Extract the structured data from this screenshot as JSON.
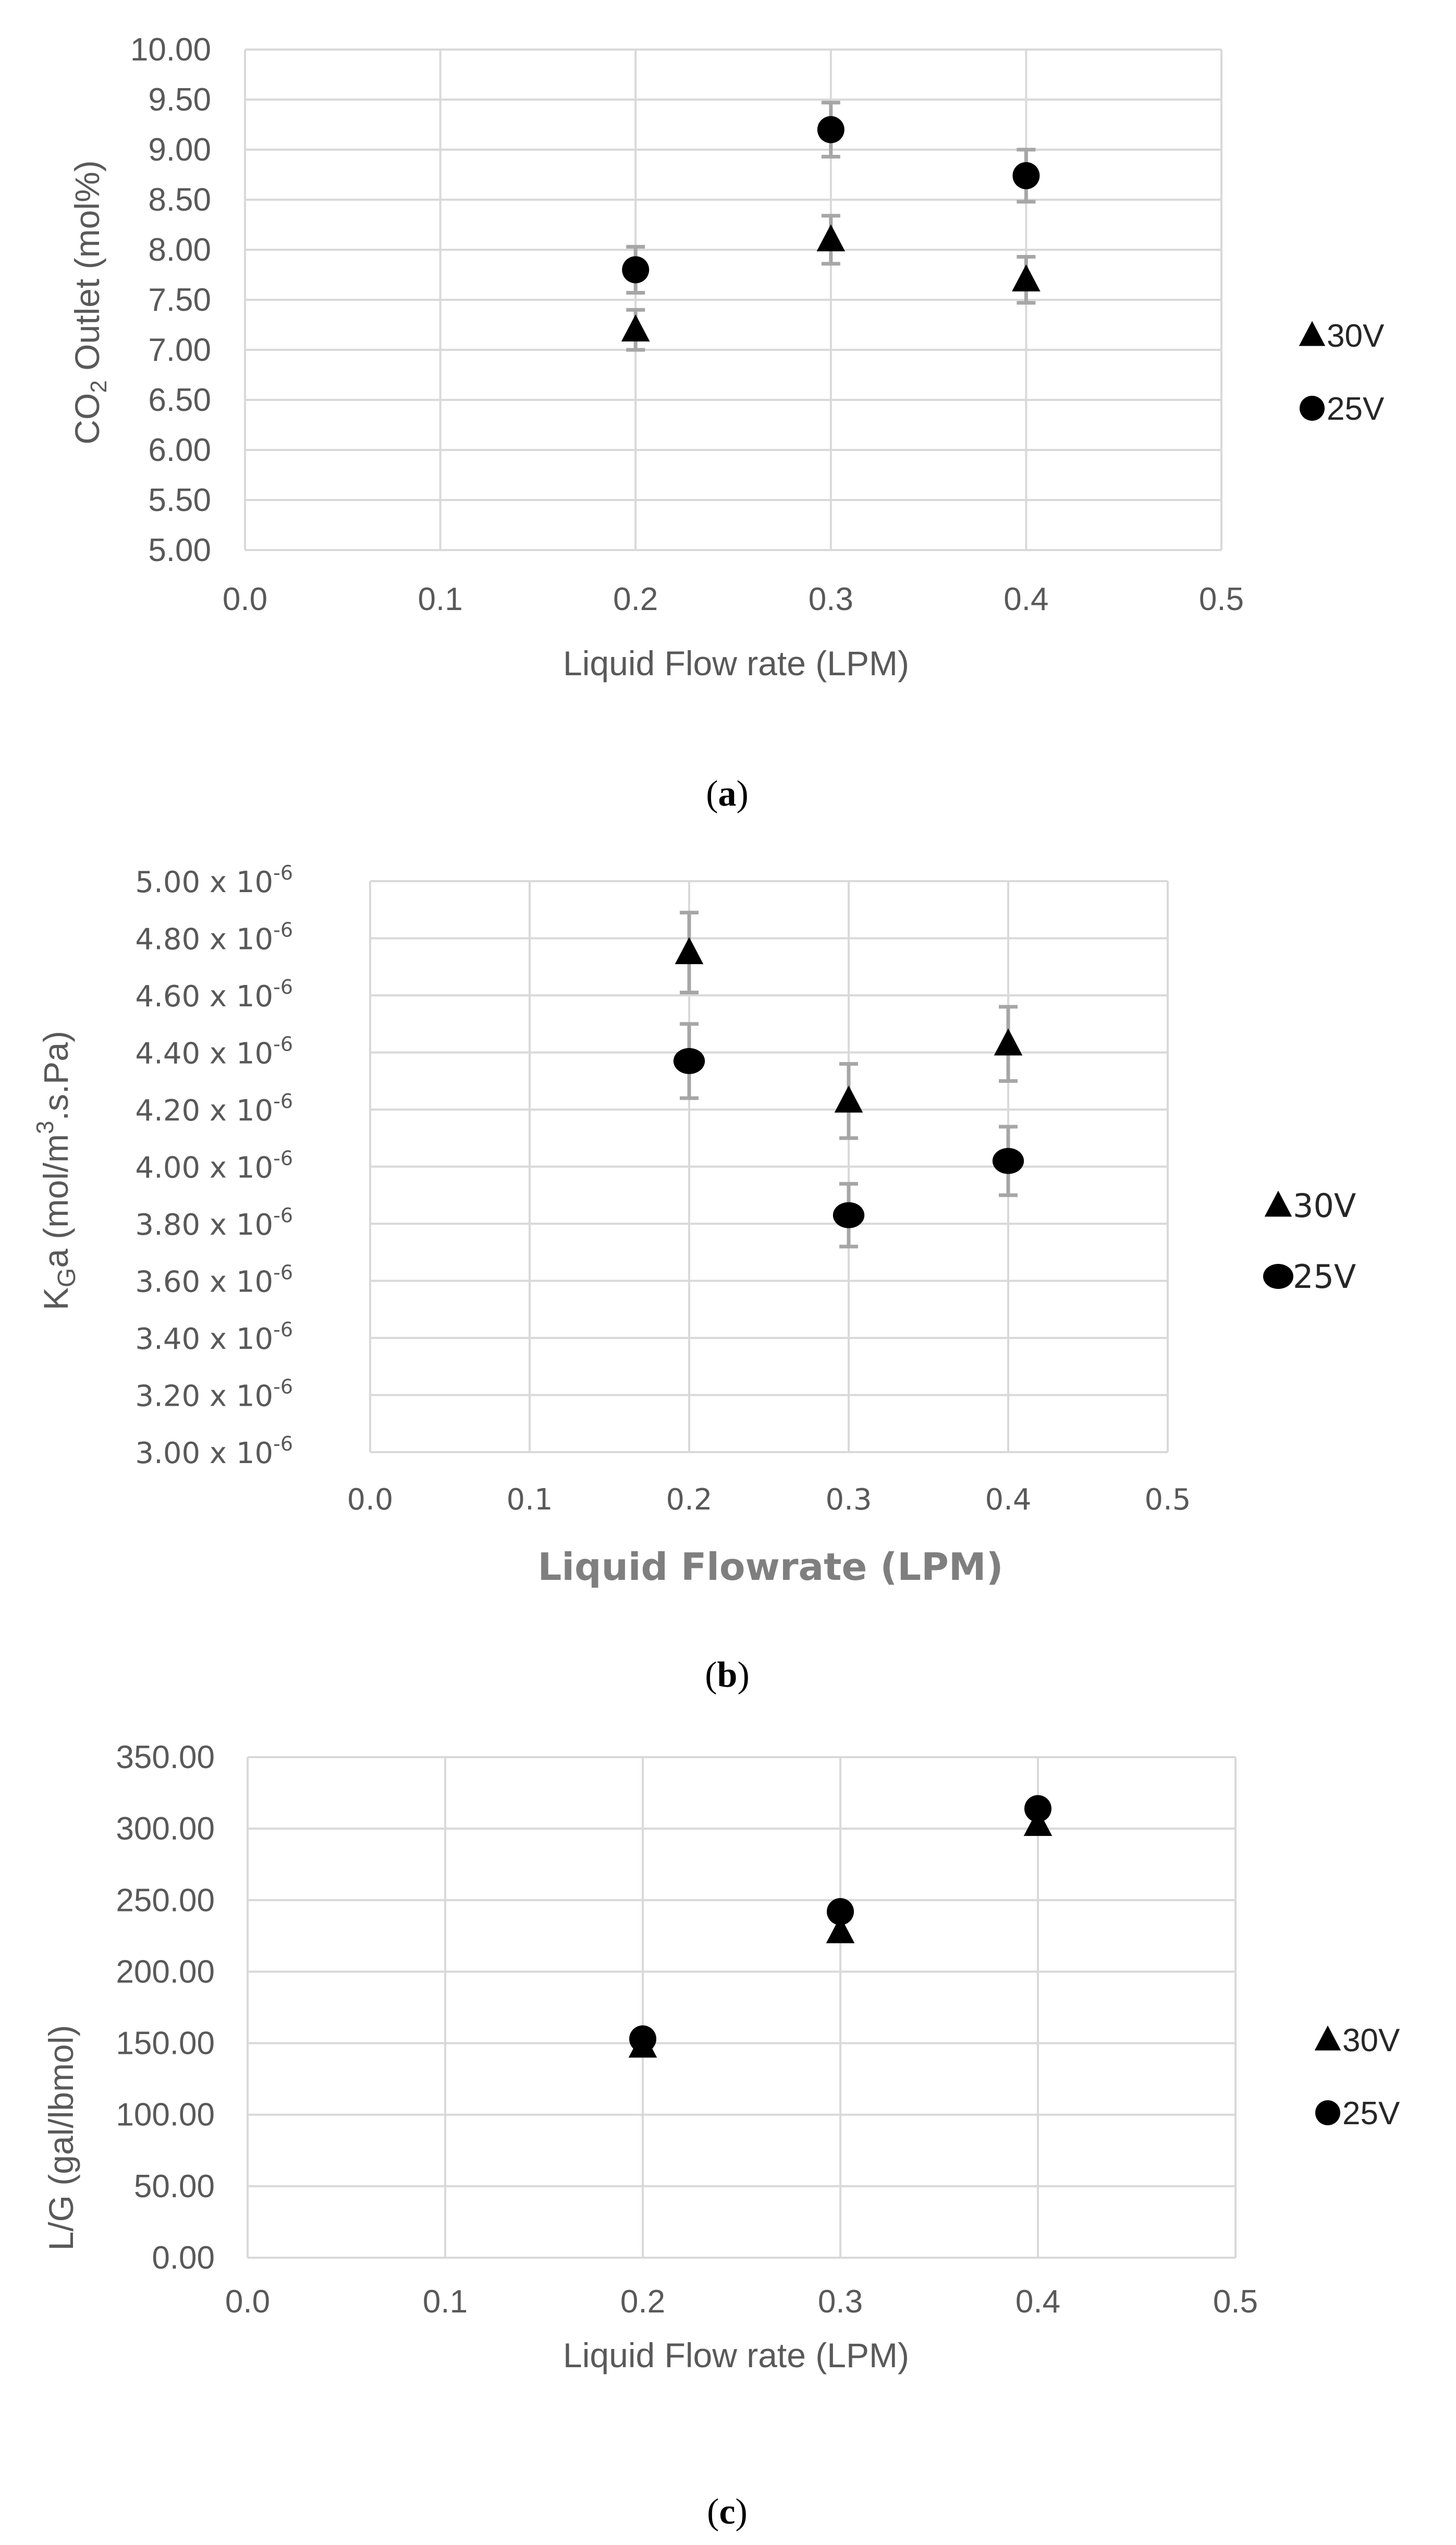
{
  "chart_data": [
    {
      "type": "scatter",
      "panel": "(a)",
      "caption_letter": "a",
      "xlabel": "Liquid Flow rate (LPM)",
      "ylabel": "CO2 Outlet (mol%)",
      "ylabel_main": "CO",
      "ylabel_sub": "2",
      "ylabel_rest": " Outlet (mol%)",
      "xlim": [
        0,
        0.5
      ],
      "ylim": [
        5,
        10
      ],
      "xticks": [
        "0.0",
        "0.1",
        "0.2",
        "0.3",
        "0.4",
        "0.5"
      ],
      "yticks": [
        "5.00",
        "5.50",
        "6.00",
        "6.50",
        "7.00",
        "7.50",
        "8.00",
        "8.50",
        "9.00",
        "9.50",
        "10.00"
      ],
      "legend_position": "right",
      "series": [
        {
          "name": "30V",
          "marker": "triangle",
          "x": [
            0.2,
            0.3,
            0.4
          ],
          "y": [
            7.2,
            8.1,
            7.7
          ],
          "err": [
            0.2,
            0.24,
            0.23
          ]
        },
        {
          "name": "25V",
          "marker": "circle",
          "x": [
            0.2,
            0.3,
            0.4
          ],
          "y": [
            7.8,
            9.2,
            8.74
          ],
          "err": [
            0.23,
            0.27,
            0.26
          ]
        }
      ]
    },
    {
      "type": "scatter",
      "panel": "(b)",
      "caption_letter": "b",
      "xlabel": "Liquid Flowrate (LPM)",
      "ylabel": "KGa (mol/m3.s.Pa)",
      "ylabel_main": "K",
      "ylabel_sub": "G",
      "ylabel_mid": "a (mol/m",
      "ylabel_sup": "3",
      "ylabel_rest": ".s.Pa)",
      "xlim": [
        0,
        0.5
      ],
      "ylim": [
        3e-06,
        5e-06
      ],
      "xticks": [
        "0.0",
        "0.1",
        "0.2",
        "0.3",
        "0.4",
        "0.5"
      ],
      "yticks": [
        "3.00 x 10",
        "3.20 x 10",
        "3.40 x 10",
        "3.60 x 10",
        "3.80 x 10",
        "4.00 x 10",
        "4.20 x 10",
        "4.40 x 10",
        "4.60 x 10",
        "4.80 x 10",
        "5.00 x 10"
      ],
      "ytick_exponent": "-6",
      "legend_position": "right",
      "series": [
        {
          "name": "30V",
          "marker": "triangle",
          "x": [
            0.2,
            0.3,
            0.4
          ],
          "y": [
            4.75e-06,
            4.23e-06,
            4.43e-06
          ],
          "err": [
            1.4e-07,
            1.3e-07,
            1.3e-07
          ]
        },
        {
          "name": "25V",
          "marker": "ellipse",
          "x": [
            0.2,
            0.3,
            0.4
          ],
          "y": [
            4.37e-06,
            3.83e-06,
            4.02e-06
          ],
          "err": [
            1.3e-07,
            1.1e-07,
            1.2e-07
          ]
        }
      ]
    },
    {
      "type": "scatter",
      "panel": "(c)",
      "caption_letter": "c",
      "xlabel": "Liquid Flow rate (LPM)",
      "ylabel": "L/G (gal/lbmol)",
      "xlim": [
        0,
        0.5
      ],
      "ylim": [
        0,
        350
      ],
      "xticks": [
        "0.0",
        "0.1",
        "0.2",
        "0.3",
        "0.4",
        "0.5"
      ],
      "yticks": [
        "0.00",
        "50.00",
        "100.00",
        "150.00",
        "200.00",
        "250.00",
        "300.00",
        "350.00"
      ],
      "legend_position": "right",
      "series": [
        {
          "name": "30V",
          "marker": "triangle",
          "x": [
            0.2,
            0.3,
            0.4
          ],
          "y": [
            148,
            228,
            303
          ],
          "err": [
            0,
            0,
            0
          ]
        },
        {
          "name": "25V",
          "marker": "circle",
          "x": [
            0.2,
            0.3,
            0.4
          ],
          "y": [
            153,
            242,
            314
          ],
          "err": [
            0,
            0,
            0
          ]
        }
      ]
    }
  ]
}
